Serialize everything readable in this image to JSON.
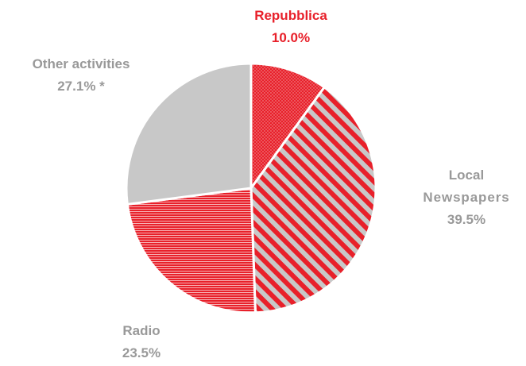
{
  "chart_data": {
    "type": "pie",
    "slices": [
      {
        "label": "Repubblica",
        "label_lines": [
          "Repubblica"
        ],
        "percent_text": "10.0%",
        "value": 10.0,
        "fill": "dots",
        "color": "#e8202a"
      },
      {
        "label": "Local Newspapers",
        "label_lines": [
          "Local",
          "Newspapers"
        ],
        "percent_text": "39.5%",
        "value": 39.5,
        "fill": "diagonal-stripes",
        "color": "#e8202a",
        "color2": "#c8c8c8"
      },
      {
        "label": "Radio",
        "label_lines": [
          "Radio"
        ],
        "percent_text": "23.5%",
        "value": 23.5,
        "fill": "horizontal-stripes",
        "color": "#e8202a"
      },
      {
        "label": "Other activities",
        "label_lines": [
          "Other activities"
        ],
        "percent_text": "27.1% *",
        "value": 27.1,
        "fill": "solid",
        "color": "#c8c8c8"
      }
    ],
    "start_angle_deg": 0,
    "direction": "clockwise",
    "legend": "none"
  },
  "colors": {
    "accent_red": "#e8202a",
    "grey_fill": "#c8c8c8",
    "label_grey": "#9b9b9b",
    "separator": "#ffffff"
  }
}
